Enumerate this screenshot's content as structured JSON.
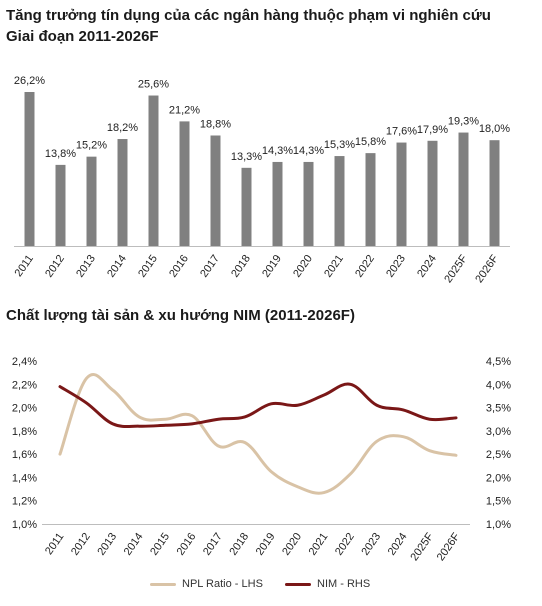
{
  "chart_data": [
    {
      "type": "bar",
      "title": "Tăng trưởng tín dụng của các ngân hàng thuộc phạm vi nghiên cứu",
      "subtitle": "Giai đoạn 2011-2026F",
      "categories": [
        "2011",
        "2012",
        "2013",
        "2014",
        "2015",
        "2016",
        "2017",
        "2018",
        "2019",
        "2020",
        "2021",
        "2022",
        "2023",
        "2024",
        "2025F",
        "2026F"
      ],
      "values": [
        26.2,
        13.8,
        15.2,
        18.2,
        25.6,
        21.2,
        18.8,
        13.3,
        14.3,
        14.3,
        15.3,
        15.8,
        17.6,
        17.9,
        19.3,
        18.0
      ],
      "value_labels": [
        "26,2%",
        "13,8%",
        "15,2%",
        "18,2%",
        "25,6%",
        "21,2%",
        "18,8%",
        "13,3%",
        "14,3%",
        "14,3%",
        "15,3%",
        "15,8%",
        "17,6%",
        "17,9%",
        "19,3%",
        "18,0%"
      ],
      "ylim": [
        0,
        27
      ],
      "bar_color": "#808080"
    },
    {
      "type": "line",
      "title": "Chất lượng tài sản & xu hướng NIM (2011-2026F)",
      "x": [
        "2011",
        "2012",
        "2013",
        "2014",
        "2015",
        "2016",
        "2017",
        "2018",
        "2019",
        "2020",
        "2021",
        "2022",
        "2023",
        "2024",
        "2025F",
        "2026F"
      ],
      "y_left": {
        "ticks": [
          "1,0%",
          "1,2%",
          "1,4%",
          "1,6%",
          "1,8%",
          "2,0%",
          "2,2%",
          "2,4%"
        ],
        "ylim": [
          1.0,
          2.4
        ]
      },
      "y_right": {
        "ticks": [
          "1,0%",
          "1,5%",
          "2,0%",
          "2,5%",
          "3,0%",
          "3,5%",
          "4,0%",
          "4,5%"
        ],
        "ylim": [
          1.0,
          4.5
        ]
      },
      "series": [
        {
          "name": "NPL Ratio - LHS",
          "axis": "left",
          "color": "#d9c3a6",
          "values": [
            1.6,
            2.25,
            2.15,
            1.92,
            1.9,
            1.93,
            1.67,
            1.7,
            1.45,
            1.32,
            1.27,
            1.43,
            1.71,
            1.75,
            1.63,
            1.59
          ]
        },
        {
          "name": "NIM - RHS",
          "axis": "right",
          "color": "#7a1717",
          "values": [
            3.95,
            3.6,
            3.15,
            3.1,
            3.12,
            3.15,
            3.25,
            3.3,
            3.58,
            3.55,
            3.77,
            4.0,
            3.55,
            3.45,
            3.25,
            3.28
          ]
        }
      ],
      "legend_position": "bottom"
    }
  ]
}
